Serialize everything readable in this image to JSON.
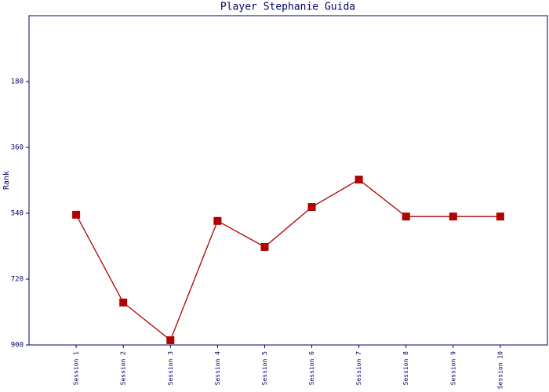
{
  "chart_data": {
    "type": "line",
    "title": "Player Stephanie Guida",
    "y_label": "Rank",
    "categories": [
      "Session 1",
      "Session 2",
      "Session 3",
      "Session 4",
      "Session 5",
      "Session 6",
      "Session 7",
      "Session 8",
      "Session 9",
      "Session 10"
    ],
    "series": [
      {
        "name": "Rank",
        "color": "#b00000",
        "values": [
          544,
          784,
          887,
          561,
          632,
          523,
          448,
          549,
          549,
          549
        ]
      }
    ],
    "ylim": [
      0,
      900
    ],
    "yticks": [
      180,
      360,
      540,
      720,
      900
    ],
    "y_inverted": true
  }
}
